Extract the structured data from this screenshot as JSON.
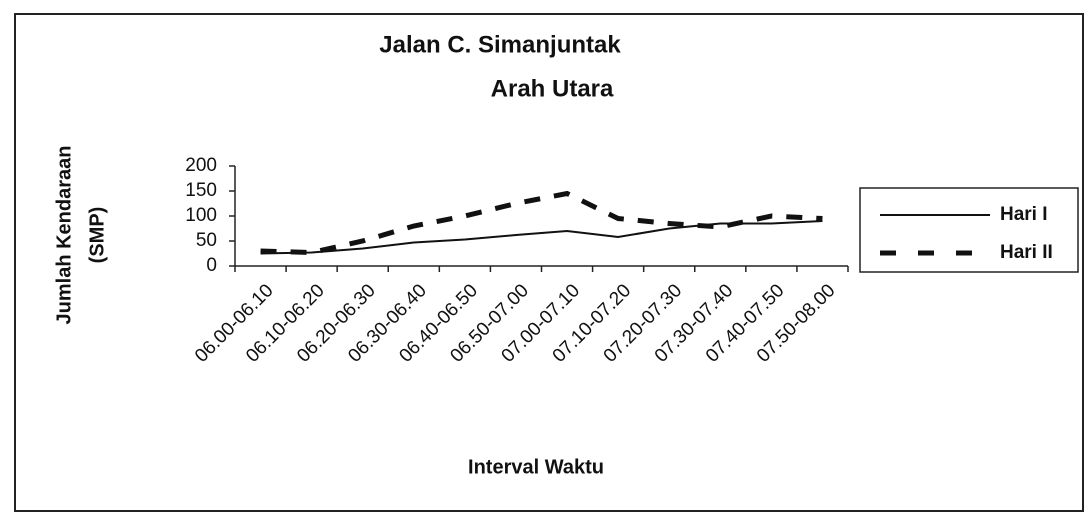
{
  "chart_data": {
    "type": "line",
    "title": "Jalan C. Simanjuntak",
    "subtitle": "Arah Utara",
    "y_label": [
      "Jumlah Kendaraan",
      "(SMP)"
    ],
    "x_label": "Interval Waktu",
    "categories": [
      "06.00-06.10",
      "06.10-06.20",
      "06.20-06.30",
      "06.30-06.40",
      "06.40-06.50",
      "06.50-07.00",
      "07.00-07.10",
      "07.10-07.20",
      "07.20-07.30",
      "07.30-07.40",
      "07.40-07.50",
      "07.50-08.00"
    ],
    "series": [
      {
        "name": "Hari I",
        "color": "#111111",
        "dash": false,
        "values": [
          25,
          27,
          35,
          47,
          53,
          62,
          70,
          58,
          75,
          85,
          85,
          90
        ]
      },
      {
        "name": "Hari II",
        "color": "#111111",
        "dash": true,
        "values": [
          30,
          27,
          50,
          80,
          100,
          125,
          145,
          95,
          85,
          78,
          100,
          95
        ]
      }
    ],
    "ylim": [
      0,
      200
    ],
    "yticks": [
      0,
      50,
      100,
      150,
      200
    ],
    "legend": "right"
  }
}
